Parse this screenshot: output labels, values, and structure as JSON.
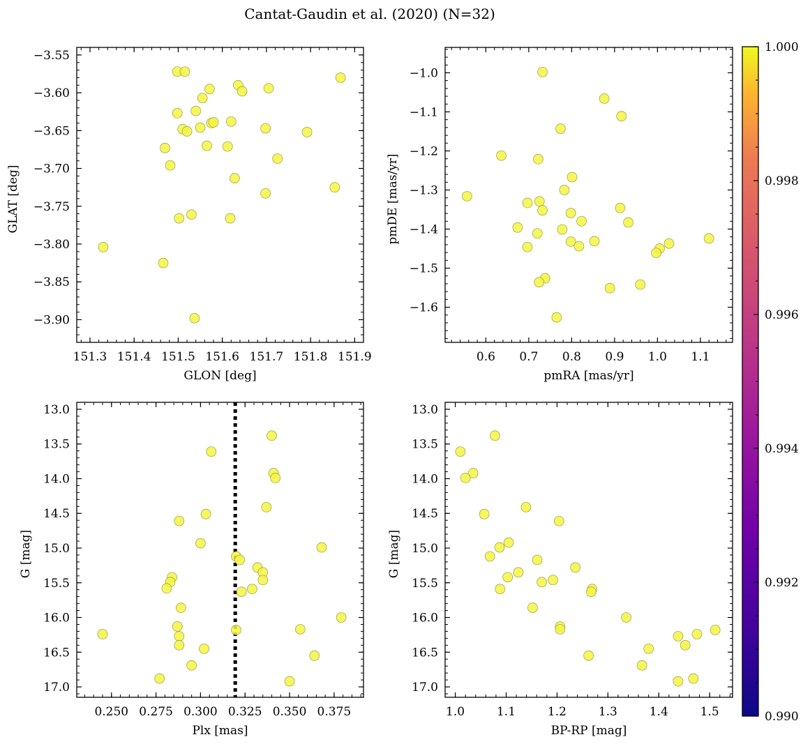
{
  "figure": {
    "title": "Cantat-Gaudin et al. (2020) (N=32)"
  },
  "colorbar": {
    "range": [
      0.99,
      1.0
    ],
    "ticks": [
      0.99,
      0.992,
      0.994,
      0.996,
      0.998,
      1.0
    ],
    "tick_labels": [
      "0.990",
      "0.992",
      "0.994",
      "0.996",
      "0.998",
      "1.000"
    ],
    "colormap": "plasma",
    "point_color": "#f5f542"
  },
  "chart_data": [
    {
      "type": "scatter",
      "xlabel": "GLON [deg]",
      "ylabel": "GLAT [deg]",
      "xlim": [
        151.27,
        151.92
      ],
      "ylim": [
        -3.93,
        -3.54
      ],
      "y_inverted": false,
      "xticks": [
        151.3,
        151.4,
        151.5,
        151.6,
        151.7,
        151.8,
        151.9
      ],
      "xtick_labels": [
        "151.3",
        "151.4",
        "151.5",
        "151.6",
        "151.7",
        "151.8",
        "151.9"
      ],
      "yticks": [
        -3.55,
        -3.6,
        -3.65,
        -3.7,
        -3.75,
        -3.8,
        -3.85,
        -3.9
      ],
      "ytick_labels": [
        "−3.55",
        "−3.60",
        "−3.65",
        "−3.70",
        "−3.75",
        "−3.80",
        "−3.85",
        "−3.90"
      ],
      "points": [
        [
          151.33,
          -3.804
        ],
        [
          151.498,
          -3.572
        ],
        [
          151.515,
          -3.572
        ],
        [
          151.571,
          -3.595
        ],
        [
          151.636,
          -3.59
        ],
        [
          151.645,
          -3.598
        ],
        [
          151.705,
          -3.594
        ],
        [
          151.868,
          -3.58
        ],
        [
          151.498,
          -3.627
        ],
        [
          151.54,
          -3.624
        ],
        [
          151.555,
          -3.607
        ],
        [
          151.575,
          -3.64
        ],
        [
          151.58,
          -3.639
        ],
        [
          151.51,
          -3.648
        ],
        [
          151.52,
          -3.651
        ],
        [
          151.55,
          -3.646
        ],
        [
          151.62,
          -3.638
        ],
        [
          151.698,
          -3.647
        ],
        [
          151.792,
          -3.652
        ],
        [
          151.47,
          -3.673
        ],
        [
          151.565,
          -3.67
        ],
        [
          151.612,
          -3.671
        ],
        [
          151.725,
          -3.687
        ],
        [
          151.482,
          -3.696
        ],
        [
          151.628,
          -3.713
        ],
        [
          151.855,
          -3.725
        ],
        [
          151.698,
          -3.733
        ],
        [
          151.53,
          -3.761
        ],
        [
          151.502,
          -3.766
        ],
        [
          151.618,
          -3.766
        ],
        [
          151.466,
          -3.825
        ],
        [
          151.537,
          -3.898
        ]
      ]
    },
    {
      "type": "scatter",
      "xlabel": "pmRA [mas/yr]",
      "ylabel": "pmDE [mas/yr]",
      "xlim": [
        0.505,
        1.175
      ],
      "ylim": [
        -1.69,
        -0.935
      ],
      "y_inverted": false,
      "xticks": [
        0.6,
        0.7,
        0.8,
        0.9,
        1.0,
        1.1
      ],
      "xtick_labels": [
        "0.6",
        "0.7",
        "0.8",
        "0.9",
        "1.0",
        "1.1"
      ],
      "yticks": [
        -1.0,
        -1.1,
        -1.2,
        -1.3,
        -1.4,
        -1.5,
        -1.6
      ],
      "ytick_labels": [
        "−1.0",
        "−1.1",
        "−1.2",
        "−1.3",
        "−1.4",
        "−1.5",
        "−1.6"
      ],
      "points": [
        [
          0.732,
          -0.998
        ],
        [
          0.876,
          -1.066
        ],
        [
          0.916,
          -1.111
        ],
        [
          0.774,
          -1.143
        ],
        [
          0.636,
          -1.212
        ],
        [
          0.722,
          -1.221
        ],
        [
          0.801,
          -1.267
        ],
        [
          0.783,
          -1.3
        ],
        [
          0.556,
          -1.316
        ],
        [
          0.697,
          -1.333
        ],
        [
          0.725,
          -1.329
        ],
        [
          0.732,
          -1.352
        ],
        [
          0.913,
          -1.346
        ],
        [
          0.798,
          -1.359
        ],
        [
          0.932,
          -1.383
        ],
        [
          0.823,
          -1.38
        ],
        [
          0.674,
          -1.396
        ],
        [
          0.778,
          -1.401
        ],
        [
          0.72,
          -1.411
        ],
        [
          0.798,
          -1.432
        ],
        [
          0.853,
          -1.431
        ],
        [
          1.12,
          -1.424
        ],
        [
          0.817,
          -1.444
        ],
        [
          0.697,
          -1.446
        ],
        [
          1.027,
          -1.437
        ],
        [
          1.005,
          -1.45
        ],
        [
          0.997,
          -1.461
        ],
        [
          0.738,
          -1.526
        ],
        [
          0.724,
          -1.536
        ],
        [
          0.96,
          -1.542
        ],
        [
          0.889,
          -1.551
        ],
        [
          0.765,
          -1.626
        ]
      ]
    },
    {
      "type": "scatter",
      "xlabel": "Plx [mas]",
      "ylabel": "G [mag]",
      "xlim": [
        0.2305,
        0.3915
      ],
      "ylim": [
        12.9,
        17.15
      ],
      "y_inverted": true,
      "vline": 0.3195,
      "xticks": [
        0.25,
        0.275,
        0.3,
        0.325,
        0.35,
        0.375
      ],
      "xtick_labels": [
        "0.250",
        "0.275",
        "0.300",
        "0.325",
        "0.350",
        "0.375"
      ],
      "yticks": [
        13.0,
        13.5,
        14.0,
        14.5,
        15.0,
        15.5,
        16.0,
        16.5,
        17.0
      ],
      "ytick_labels": [
        "13.0",
        "13.5",
        "14.0",
        "14.5",
        "15.0",
        "15.5",
        "16.0",
        "16.5",
        "17.0"
      ],
      "points": [
        [
          0.34,
          13.38
        ],
        [
          0.306,
          13.61
        ],
        [
          0.341,
          13.92
        ],
        [
          0.342,
          13.99
        ],
        [
          0.337,
          14.41
        ],
        [
          0.303,
          14.51
        ],
        [
          0.288,
          14.61
        ],
        [
          0.3,
          14.93
        ],
        [
          0.368,
          14.99
        ],
        [
          0.32,
          15.12
        ],
        [
          0.322,
          15.17
        ],
        [
          0.332,
          15.28
        ],
        [
          0.335,
          15.35
        ],
        [
          0.284,
          15.42
        ],
        [
          0.283,
          15.49
        ],
        [
          0.335,
          15.46
        ],
        [
          0.281,
          15.58
        ],
        [
          0.329,
          15.59
        ],
        [
          0.323,
          15.63
        ],
        [
          0.289,
          15.86
        ],
        [
          0.379,
          16.0
        ],
        [
          0.287,
          16.13
        ],
        [
          0.32,
          16.18
        ],
        [
          0.356,
          16.17
        ],
        [
          0.245,
          16.24
        ],
        [
          0.288,
          16.27
        ],
        [
          0.288,
          16.4
        ],
        [
          0.302,
          16.45
        ],
        [
          0.364,
          16.55
        ],
        [
          0.295,
          16.69
        ],
        [
          0.277,
          16.88
        ],
        [
          0.35,
          16.92
        ]
      ]
    },
    {
      "type": "scatter",
      "xlabel": "BP-RP [mag]",
      "ylabel": "G [mag]",
      "xlim": [
        0.98,
        1.545
      ],
      "ylim": [
        12.9,
        17.15
      ],
      "y_inverted": true,
      "xticks": [
        1.0,
        1.1,
        1.2,
        1.3,
        1.4,
        1.5
      ],
      "xtick_labels": [
        "1.0",
        "1.1",
        "1.2",
        "1.3",
        "1.4",
        "1.5"
      ],
      "yticks": [
        13.0,
        13.5,
        14.0,
        14.5,
        15.0,
        15.5,
        16.0,
        16.5,
        17.0
      ],
      "ytick_labels": [
        "13.0",
        "13.5",
        "14.0",
        "14.5",
        "15.0",
        "15.5",
        "16.0",
        "16.5",
        "17.0"
      ],
      "points": [
        [
          1.01,
          13.61
        ],
        [
          1.078,
          13.38
        ],
        [
          1.035,
          13.92
        ],
        [
          1.02,
          13.99
        ],
        [
          1.057,
          14.51
        ],
        [
          1.139,
          14.41
        ],
        [
          1.204,
          14.61
        ],
        [
          1.087,
          14.99
        ],
        [
          1.105,
          14.92
        ],
        [
          1.068,
          15.12
        ],
        [
          1.161,
          15.17
        ],
        [
          1.236,
          15.28
        ],
        [
          1.124,
          15.35
        ],
        [
          1.103,
          15.42
        ],
        [
          1.17,
          15.49
        ],
        [
          1.192,
          15.46
        ],
        [
          1.269,
          15.59
        ],
        [
          1.267,
          15.63
        ],
        [
          1.088,
          15.59
        ],
        [
          1.152,
          15.86
        ],
        [
          1.336,
          16.0
        ],
        [
          1.206,
          16.13
        ],
        [
          1.206,
          16.17
        ],
        [
          1.511,
          16.18
        ],
        [
          1.475,
          16.24
        ],
        [
          1.438,
          16.27
        ],
        [
          1.452,
          16.4
        ],
        [
          1.38,
          16.45
        ],
        [
          1.262,
          16.55
        ],
        [
          1.367,
          16.69
        ],
        [
          1.468,
          16.88
        ],
        [
          1.438,
          16.92
        ]
      ]
    }
  ]
}
